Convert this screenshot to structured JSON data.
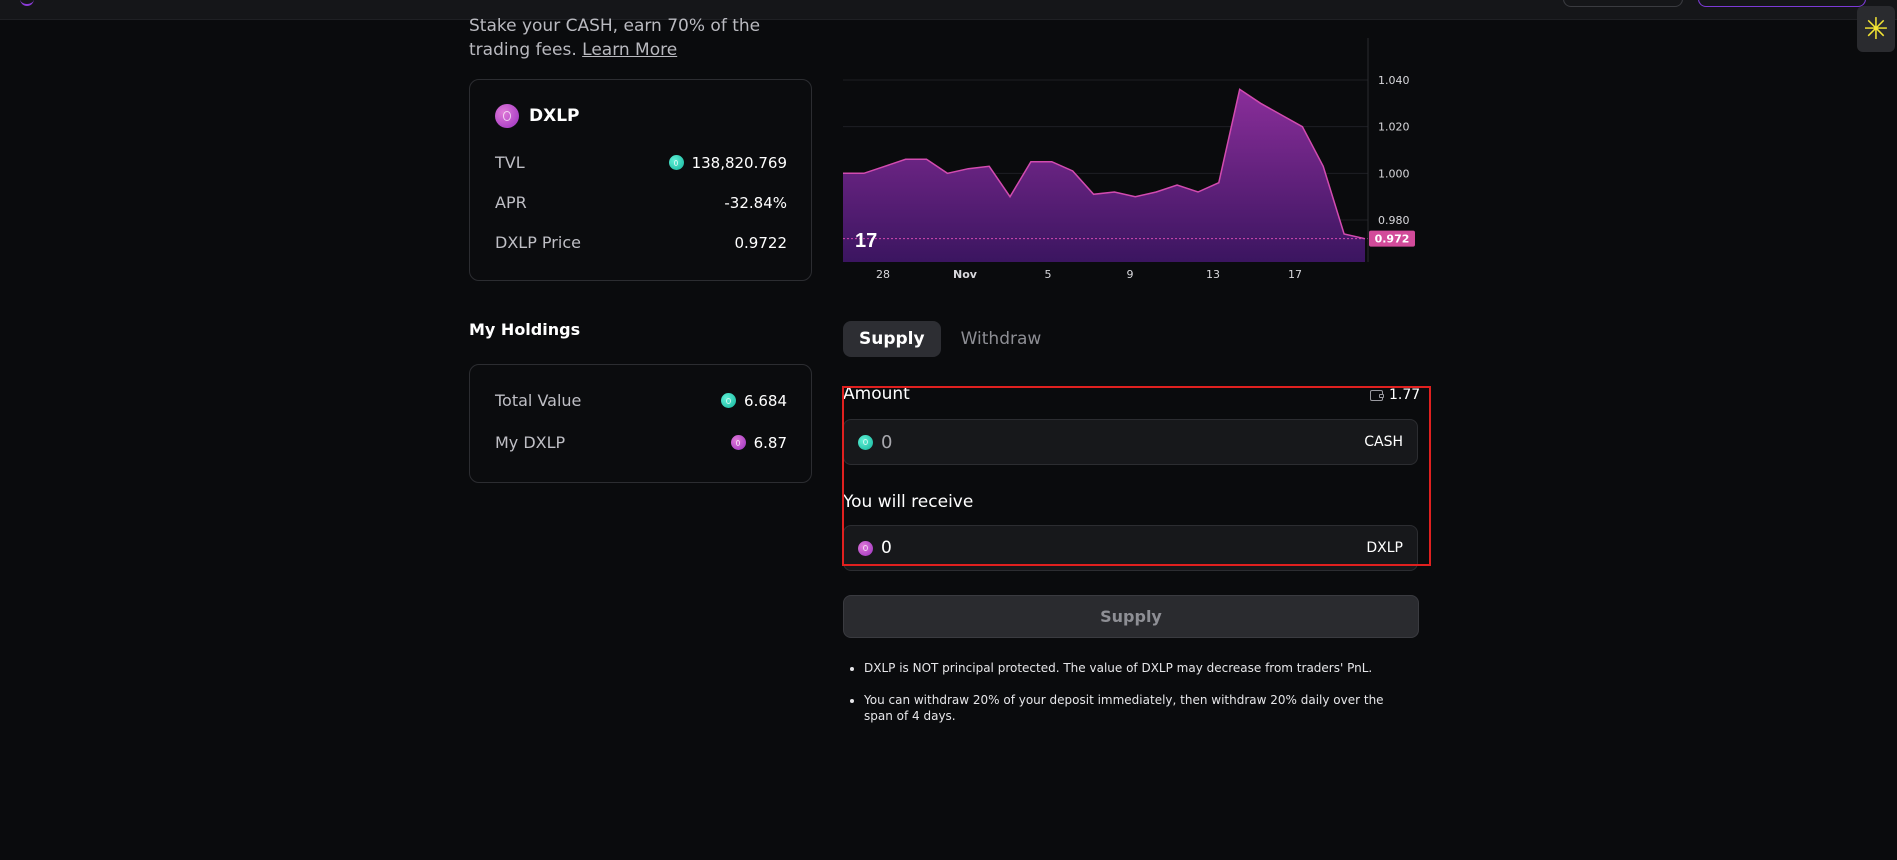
{
  "intro": {
    "text": "Stake your CASH, earn 70% of the trading fees.",
    "learn_more": "Learn More"
  },
  "pool": {
    "name": "DXLP",
    "tvl_label": "TVL",
    "tvl_value": "138,820.769",
    "apr_label": "APR",
    "apr_value": "-32.84%",
    "price_label": "DXLP Price",
    "price_value": "0.9722"
  },
  "holdings": {
    "title": "My Holdings",
    "total_label": "Total Value",
    "total_value": "6.684",
    "dxlp_label": "My DXLP",
    "dxlp_value": "6.87"
  },
  "chart_data": {
    "type": "area",
    "x_ticks": [
      "28",
      "Nov",
      "5",
      "9",
      "13",
      "17"
    ],
    "y_ticks": [
      "1.040",
      "1.020",
      "1.000",
      "0.980"
    ],
    "ylim": [
      0.962,
      1.058
    ],
    "values": [
      1.0,
      1.0,
      1.003,
      1.006,
      1.006,
      1.0,
      1.002,
      1.003,
      0.99,
      1.005,
      1.005,
      1.001,
      0.991,
      0.992,
      0.99,
      0.992,
      0.995,
      0.992,
      0.996,
      1.036,
      1.03,
      1.025,
      1.02,
      1.003,
      0.974,
      0.972
    ],
    "last_value_label": "0.972",
    "colors": {
      "line": "#d24bb0",
      "fill_top": "#8a2e9a",
      "fill_bottom": "#3b1560",
      "badge": "#d24b9a"
    },
    "watermark": "TradingView logo"
  },
  "tabs": [
    "Supply",
    "Withdraw"
  ],
  "form": {
    "amount_label": "Amount",
    "balance": "1.77",
    "amount_value": "",
    "amount_placeholder": "0",
    "amount_unit": "CASH",
    "receive_label": "You will receive",
    "receive_value": "0",
    "receive_unit": "DXLP",
    "submit_label": "Supply"
  },
  "notes": [
    "DXLP is NOT principal protected. The value of DXLP may decrease from traders' PnL.",
    "You can withdraw 20% of your deposit immediately, then withdraw 20% daily over the span of 4 days."
  ],
  "icons": {
    "extension": "asterisk-icon"
  }
}
